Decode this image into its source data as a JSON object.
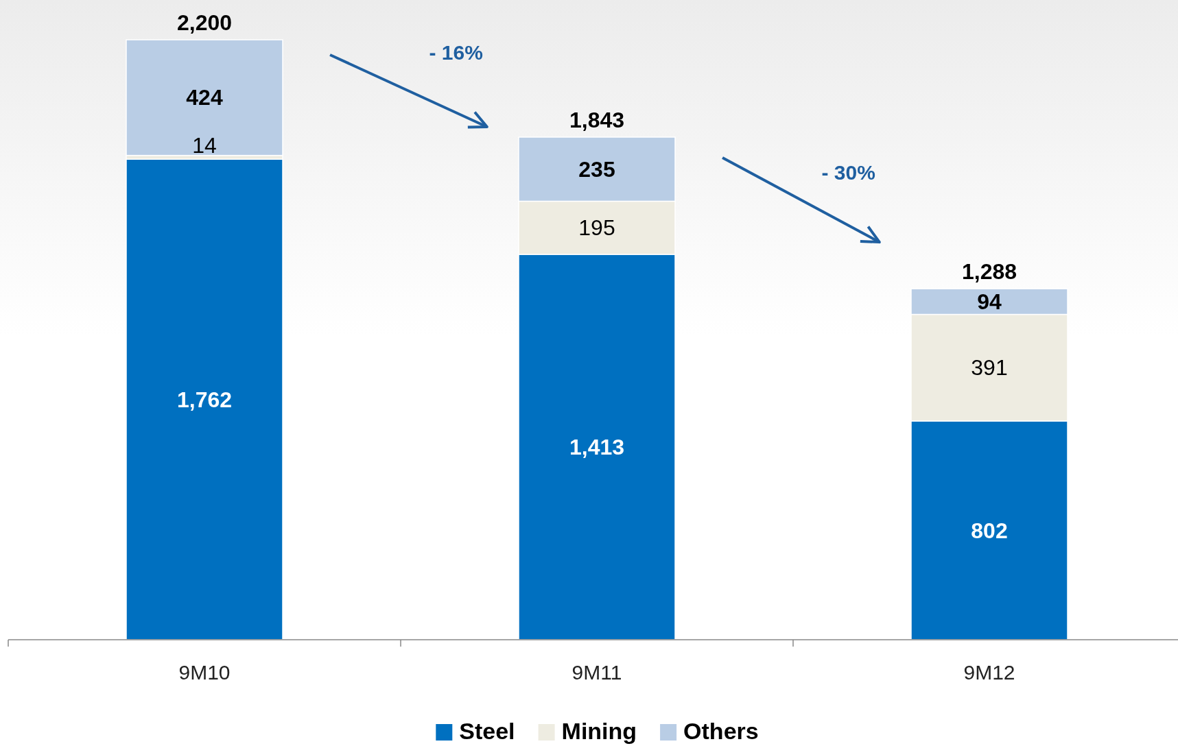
{
  "chart_data": {
    "type": "bar",
    "stacked": true,
    "categories": [
      "9M10",
      "9M11",
      "9M12"
    ],
    "series": [
      {
        "name": "Steel",
        "color": "#0070c0",
        "values": [
          1762,
          1413,
          802
        ],
        "value_labels": [
          "1,762",
          "1,413",
          "802"
        ]
      },
      {
        "name": "Mining",
        "color": "#eeece1",
        "values": [
          14,
          195,
          391
        ],
        "value_labels": [
          "14",
          "195",
          "391"
        ]
      },
      {
        "name": "Others",
        "color": "#b9cde5",
        "values": [
          424,
          235,
          94
        ],
        "value_labels": [
          "424",
          "235",
          "94"
        ]
      }
    ],
    "totals": [
      "2,200",
      "1,843",
      "1,288"
    ],
    "annotations": [
      "- 16%",
      "- 30%"
    ],
    "legend": "bottom"
  }
}
